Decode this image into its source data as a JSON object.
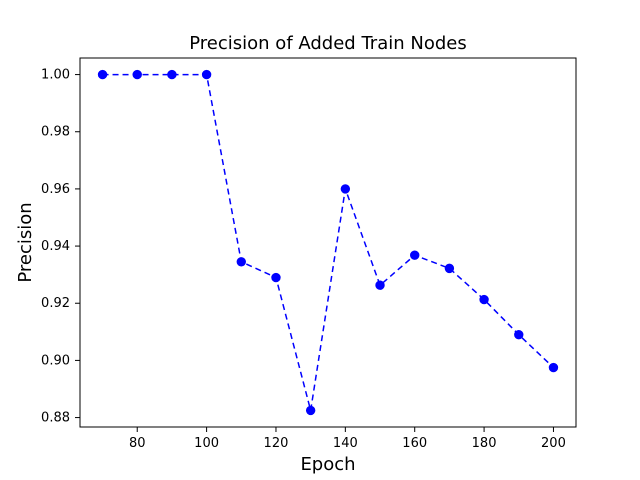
{
  "chart_data": {
    "type": "line",
    "title": "Precision of Added Train Nodes",
    "xlabel": "Epoch",
    "ylabel": "Precision",
    "x": [
      70,
      80,
      90,
      100,
      110,
      120,
      130,
      140,
      150,
      160,
      170,
      180,
      190,
      200
    ],
    "series": [
      {
        "values": [
          1.0,
          1.0,
          1.0,
          1.0,
          0.9345,
          0.929,
          0.8825,
          0.96,
          0.9263,
          0.9368,
          0.9322,
          0.9213,
          0.909,
          0.8975
        ],
        "color": "#0000ff",
        "line_style": "dashed",
        "marker": "circle"
      }
    ],
    "xlim": [
      63.5,
      206.5
    ],
    "ylim": [
      0.8767,
      1.0058
    ],
    "x_ticks": [
      "80",
      "100",
      "120",
      "140",
      "160",
      "180",
      "200"
    ],
    "y_ticks": [
      "0.88",
      "0.90",
      "0.92",
      "0.94",
      "0.96",
      "0.98",
      "1.00"
    ],
    "grid": false,
    "legend": "none"
  }
}
